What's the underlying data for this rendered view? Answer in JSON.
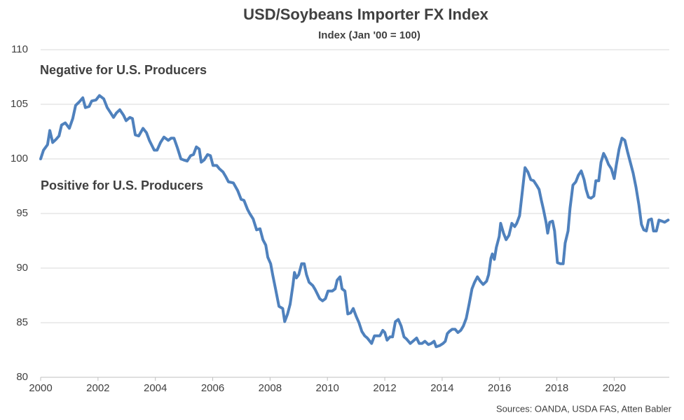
{
  "chart_data": {
    "type": "line",
    "title": "USD/Soybeans Importer FX Index",
    "subtitle": "Index (Jan '00 = 100)",
    "source": "Sources: OANDA, USDA FAS, Atten Babler",
    "annotations": [
      {
        "text": "Negative for U.S. Producers",
        "color": "#ff0000"
      },
      {
        "text": "Positive for U.S. Producers",
        "color": "#00b050"
      }
    ],
    "color": "#4f81bd",
    "grid": true,
    "xlim": [
      2000,
      2021.92
    ],
    "xticks": [
      2000,
      2002,
      2004,
      2006,
      2008,
      2010,
      2012,
      2014,
      2016,
      2018,
      2020
    ],
    "ylim": [
      80,
      110
    ],
    "yticks": [
      80,
      85,
      90,
      95,
      100,
      105,
      110
    ],
    "x": [
      2000.0,
      2000.1,
      2000.24,
      2000.32,
      2000.42,
      2000.54,
      2000.64,
      2000.73,
      2000.86,
      2001.0,
      2001.12,
      2001.22,
      2001.34,
      2001.47,
      2001.56,
      2001.69,
      2001.78,
      2001.93,
      2002.05,
      2002.2,
      2002.32,
      2002.42,
      2002.54,
      2002.64,
      2002.76,
      2002.89,
      2002.98,
      2003.11,
      2003.2,
      2003.3,
      2003.42,
      2003.57,
      2003.69,
      2003.79,
      2003.96,
      2004.06,
      2004.18,
      2004.3,
      2004.45,
      2004.55,
      2004.65,
      2004.77,
      2004.89,
      2004.99,
      2005.11,
      2005.23,
      2005.33,
      2005.43,
      2005.53,
      2005.6,
      2005.7,
      2005.82,
      2005.92,
      2006.01,
      2006.14,
      2006.23,
      2006.36,
      2006.45,
      2006.55,
      2006.72,
      2006.87,
      2006.99,
      2007.09,
      2007.21,
      2007.29,
      2007.41,
      2007.53,
      2007.65,
      2007.75,
      2007.85,
      2007.92,
      2008.02,
      2008.09,
      2008.19,
      2008.31,
      2008.44,
      2008.51,
      2008.61,
      2008.7,
      2008.8,
      2008.85,
      2008.92,
      2009.0,
      2009.1,
      2009.19,
      2009.27,
      2009.36,
      2009.49,
      2009.58,
      2009.73,
      2009.83,
      2009.93,
      2010.02,
      2010.17,
      2010.27,
      2010.34,
      2010.44,
      2010.51,
      2010.61,
      2010.71,
      2010.81,
      2010.9,
      2011.0,
      2011.1,
      2011.2,
      2011.3,
      2011.39,
      2011.54,
      2011.64,
      2011.74,
      2011.83,
      2011.93,
      2012.0,
      2012.08,
      2012.18,
      2012.27,
      2012.37,
      2012.47,
      2012.57,
      2012.67,
      2012.76,
      2012.89,
      2012.98,
      2013.11,
      2013.2,
      2013.3,
      2013.4,
      2013.52,
      2013.62,
      2013.72,
      2013.79,
      2013.91,
      2014.03,
      2014.11,
      2014.18,
      2014.25,
      2014.35,
      2014.45,
      2014.55,
      2014.65,
      2014.74,
      2014.84,
      2014.94,
      2015.04,
      2015.13,
      2015.23,
      2015.33,
      2015.43,
      2015.55,
      2015.62,
      2015.7,
      2015.75,
      2015.82,
      2015.89,
      2015.99,
      2016.04,
      2016.14,
      2016.23,
      2016.33,
      2016.43,
      2016.53,
      2016.6,
      2016.7,
      2016.8,
      2016.89,
      2016.99,
      2017.09,
      2017.19,
      2017.29,
      2017.38,
      2017.46,
      2017.53,
      2017.63,
      2017.68,
      2017.75,
      2017.85,
      2017.92,
      2018.02,
      2018.12,
      2018.22,
      2018.29,
      2018.39,
      2018.46,
      2018.56,
      2018.66,
      2018.75,
      2018.85,
      2018.95,
      2019.02,
      2019.1,
      2019.19,
      2019.29,
      2019.36,
      2019.46,
      2019.54,
      2019.63,
      2019.71,
      2019.8,
      2019.9,
      2020.0,
      2020.07,
      2020.17,
      2020.27,
      2020.37,
      2020.46,
      2020.56,
      2020.66,
      2020.76,
      2020.86,
      2020.95,
      2021.03,
      2021.12,
      2021.2,
      2021.3,
      2021.37,
      2021.47,
      2021.56,
      2021.66,
      2021.76,
      2021.88
    ],
    "values": [
      100.0,
      100.8,
      101.3,
      102.6,
      101.5,
      101.8,
      102.1,
      103.1,
      103.3,
      102.8,
      103.7,
      104.9,
      105.2,
      105.6,
      104.7,
      104.8,
      105.3,
      105.4,
      105.8,
      105.5,
      104.7,
      104.3,
      103.8,
      104.2,
      104.5,
      104.0,
      103.5,
      103.8,
      103.7,
      102.2,
      102.1,
      102.8,
      102.4,
      101.7,
      100.8,
      100.8,
      101.5,
      102.0,
      101.7,
      101.9,
      101.9,
      101.0,
      100.0,
      99.9,
      99.8,
      100.3,
      100.4,
      101.1,
      100.9,
      99.7,
      99.9,
      100.4,
      100.3,
      99.4,
      99.4,
      99.1,
      98.8,
      98.4,
      97.9,
      97.8,
      97.1,
      96.3,
      96.2,
      95.4,
      95.0,
      94.5,
      93.5,
      93.6,
      92.6,
      92.1,
      91.0,
      90.4,
      89.4,
      88.1,
      86.5,
      86.3,
      85.1,
      85.8,
      86.7,
      88.5,
      89.6,
      89.1,
      89.4,
      90.4,
      90.4,
      89.4,
      88.7,
      88.4,
      88.0,
      87.2,
      87.0,
      87.2,
      87.9,
      87.9,
      88.1,
      88.9,
      89.2,
      88.1,
      87.9,
      85.8,
      85.9,
      86.3,
      85.6,
      85.0,
      84.2,
      83.8,
      83.6,
      83.1,
      83.8,
      83.8,
      83.8,
      84.3,
      84.1,
      83.4,
      83.7,
      83.7,
      85.1,
      85.3,
      84.7,
      83.7,
      83.5,
      83.1,
      83.3,
      83.6,
      83.1,
      83.1,
      83.3,
      83.0,
      83.1,
      83.3,
      82.8,
      82.9,
      83.1,
      83.3,
      84.0,
      84.2,
      84.4,
      84.4,
      84.1,
      84.3,
      84.7,
      85.4,
      86.7,
      88.1,
      88.7,
      89.2,
      88.8,
      88.5,
      88.8,
      89.4,
      90.9,
      91.3,
      90.8,
      91.9,
      92.9,
      94.1,
      93.2,
      92.6,
      93.0,
      94.1,
      93.8,
      94.1,
      94.8,
      97.1,
      99.2,
      98.8,
      98.1,
      98.0,
      97.6,
      97.2,
      96.2,
      95.4,
      94.1,
      93.2,
      94.2,
      94.3,
      93.4,
      90.5,
      90.4,
      90.4,
      92.3,
      93.4,
      95.5,
      97.6,
      97.9,
      98.5,
      98.9,
      98.1,
      97.2,
      96.5,
      96.4,
      96.6,
      98.0,
      98.0,
      99.7,
      100.5,
      100.1,
      99.5,
      99.1,
      98.2,
      99.4,
      100.9,
      101.9,
      101.7,
      100.7,
      99.7,
      98.7,
      97.4,
      95.8,
      94.0,
      93.5,
      93.4,
      94.4,
      94.5,
      93.4,
      93.4,
      94.4,
      94.3,
      94.2,
      94.4
    ]
  }
}
